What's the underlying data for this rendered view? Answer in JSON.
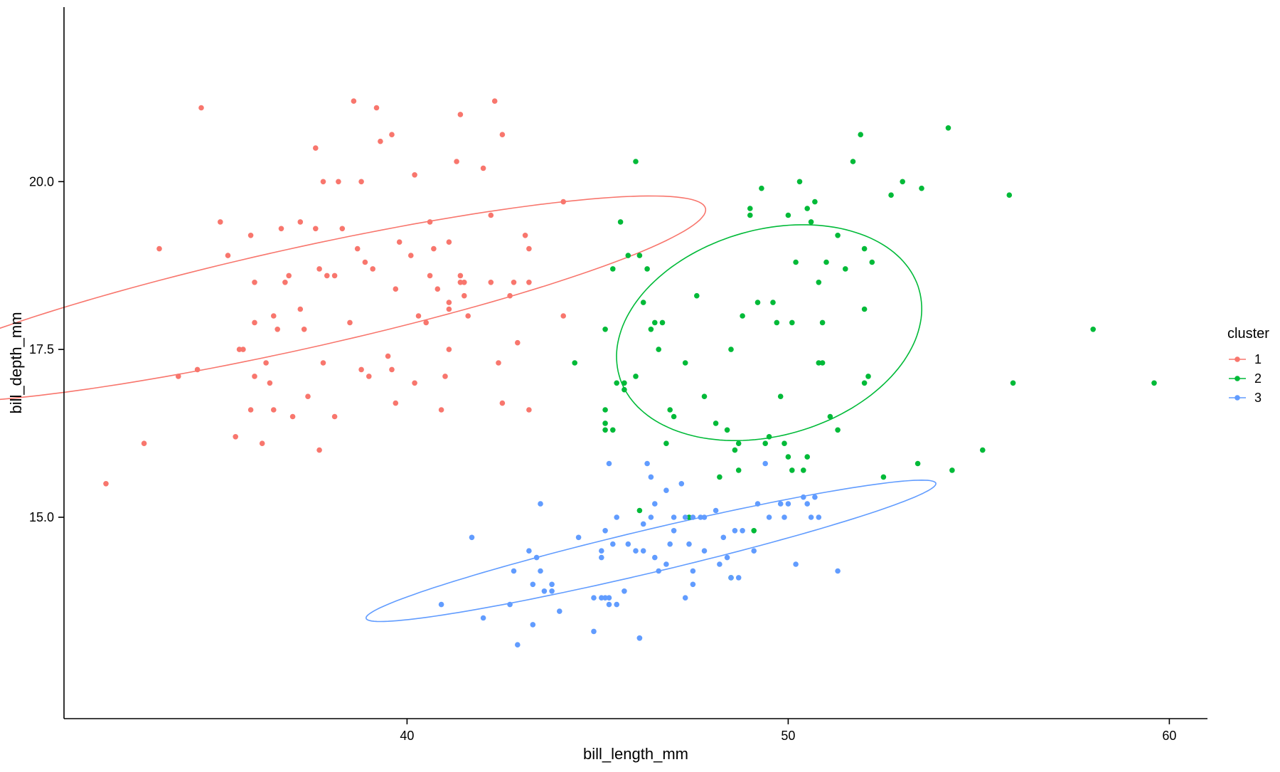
{
  "chart_data": {
    "type": "scatter",
    "title": "",
    "xlabel": "bill_length_mm",
    "ylabel": "bill_depth_mm",
    "xlim": [
      31.0,
      61.0
    ],
    "ylim": [
      12.0,
      22.6
    ],
    "xticks": [
      40,
      50,
      60
    ],
    "xtick_labels": [
      "40",
      "50",
      "60"
    ],
    "yticks": [
      15.0,
      17.5,
      20.0
    ],
    "ytick_labels": [
      "15.0",
      "17.5",
      "20.0"
    ],
    "grid": false,
    "legend": {
      "title": "cluster",
      "position": "right",
      "entries": [
        "1",
        "2",
        "3"
      ]
    },
    "colors": {
      "1": "#F8766D",
      "2": "#00BA38",
      "3": "#619CFF"
    },
    "ellipses": [
      {
        "cluster": "1",
        "center": [
          37.1,
          18.25
        ],
        "rx": 11.4,
        "ry": 2.05,
        "angle": 20
      },
      {
        "cluster": "2",
        "center": [
          49.5,
          17.75
        ],
        "rx": 4.8,
        "ry": 3.7,
        "angle": 60
      },
      {
        "cluster": "3",
        "center": [
          46.4,
          14.5
        ],
        "rx": 8.0,
        "ry": 0.87,
        "angle": 21
      }
    ],
    "series": [
      {
        "name": "1",
        "points": [
          [
            32.1,
            15.5
          ],
          [
            33.1,
            16.1
          ],
          [
            33.5,
            19.0
          ],
          [
            34.0,
            17.1
          ],
          [
            34.5,
            17.2
          ],
          [
            34.6,
            21.1
          ],
          [
            35.1,
            19.4
          ],
          [
            35.3,
            18.9
          ],
          [
            35.5,
            16.2
          ],
          [
            35.6,
            17.5
          ],
          [
            35.7,
            17.5
          ],
          [
            35.9,
            19.2
          ],
          [
            36.0,
            17.1
          ],
          [
            36.0,
            18.5
          ],
          [
            36.0,
            17.9
          ],
          [
            36.2,
            16.1
          ],
          [
            36.3,
            17.3
          ],
          [
            36.4,
            17.0
          ],
          [
            36.5,
            18.0
          ],
          [
            36.5,
            16.6
          ],
          [
            36.6,
            17.8
          ],
          [
            36.7,
            19.3
          ],
          [
            36.8,
            18.5
          ],
          [
            36.9,
            18.6
          ],
          [
            37.0,
            16.5
          ],
          [
            37.2,
            18.1
          ],
          [
            37.3,
            17.8
          ],
          [
            37.4,
            16.8
          ],
          [
            37.6,
            19.3
          ],
          [
            37.7,
            18.7
          ],
          [
            37.8,
            20.0
          ],
          [
            37.8,
            17.3
          ],
          [
            37.9,
            18.6
          ],
          [
            38.1,
            18.6
          ],
          [
            38.1,
            16.5
          ],
          [
            38.2,
            20.0
          ],
          [
            38.5,
            17.9
          ],
          [
            38.6,
            21.2
          ],
          [
            38.7,
            19.0
          ],
          [
            38.8,
            17.2
          ],
          [
            38.9,
            18.8
          ],
          [
            39.0,
            17.1
          ],
          [
            39.1,
            18.7
          ],
          [
            39.2,
            21.1
          ],
          [
            39.3,
            20.6
          ],
          [
            39.5,
            17.4
          ],
          [
            39.6,
            17.2
          ],
          [
            39.7,
            18.4
          ],
          [
            39.8,
            19.1
          ],
          [
            40.1,
            18.9
          ],
          [
            40.2,
            20.1
          ],
          [
            40.2,
            17.0
          ],
          [
            40.3,
            18.0
          ],
          [
            40.5,
            17.9
          ],
          [
            40.6,
            18.6
          ],
          [
            40.7,
            19.0
          ],
          [
            40.8,
            18.4
          ],
          [
            41.0,
            17.1
          ],
          [
            41.1,
            18.1
          ],
          [
            41.1,
            18.2
          ],
          [
            41.1,
            17.5
          ],
          [
            41.1,
            19.1
          ],
          [
            41.3,
            20.3
          ],
          [
            41.4,
            18.6
          ],
          [
            41.4,
            18.5
          ],
          [
            41.5,
            18.3
          ],
          [
            41.5,
            18.5
          ],
          [
            41.6,
            18.0
          ],
          [
            42.0,
            20.2
          ],
          [
            42.2,
            19.5
          ],
          [
            42.2,
            18.5
          ],
          [
            42.3,
            21.2
          ],
          [
            42.5,
            20.7
          ],
          [
            42.7,
            18.3
          ],
          [
            42.8,
            18.5
          ],
          [
            42.9,
            17.6
          ],
          [
            43.1,
            19.2
          ],
          [
            43.2,
            19.0
          ],
          [
            43.2,
            18.5
          ],
          [
            44.1,
            19.7
          ],
          [
            44.1,
            18.0
          ],
          [
            37.6,
            20.5
          ],
          [
            39.6,
            20.7
          ],
          [
            41.4,
            21.0
          ],
          [
            38.3,
            19.3
          ],
          [
            42.4,
            17.3
          ],
          [
            43.2,
            16.6
          ],
          [
            42.5,
            16.7
          ],
          [
            39.7,
            16.7
          ],
          [
            35.9,
            16.6
          ],
          [
            37.7,
            16.0
          ],
          [
            38.8,
            20.0
          ],
          [
            40.6,
            19.4
          ],
          [
            37.2,
            19.4
          ],
          [
            40.9,
            16.6
          ]
        ]
      },
      {
        "name": "2",
        "points": [
          [
            44.4,
            17.3
          ],
          [
            45.2,
            17.8
          ],
          [
            45.2,
            16.6
          ],
          [
            45.2,
            16.4
          ],
          [
            45.4,
            18.7
          ],
          [
            45.5,
            17.0
          ],
          [
            45.6,
            19.4
          ],
          [
            45.7,
            17.0
          ],
          [
            45.8,
            18.9
          ],
          [
            46.0,
            17.1
          ],
          [
            46.1,
            18.9
          ],
          [
            46.2,
            18.2
          ],
          [
            46.4,
            17.8
          ],
          [
            46.5,
            17.9
          ],
          [
            46.6,
            17.5
          ],
          [
            46.7,
            17.9
          ],
          [
            46.8,
            16.1
          ],
          [
            46.9,
            16.6
          ],
          [
            47.3,
            17.3
          ],
          [
            47.6,
            18.3
          ],
          [
            47.8,
            16.8
          ],
          [
            48.1,
            16.4
          ],
          [
            48.2,
            15.6
          ],
          [
            48.4,
            16.3
          ],
          [
            48.5,
            17.5
          ],
          [
            48.6,
            16.0
          ],
          [
            48.7,
            15.7
          ],
          [
            48.7,
            16.1
          ],
          [
            49.0,
            19.6
          ],
          [
            49.2,
            18.2
          ],
          [
            49.3,
            19.9
          ],
          [
            49.5,
            16.2
          ],
          [
            49.6,
            18.2
          ],
          [
            49.7,
            17.9
          ],
          [
            49.8,
            16.8
          ],
          [
            49.9,
            16.1
          ],
          [
            50.0,
            19.5
          ],
          [
            50.1,
            17.9
          ],
          [
            50.2,
            18.8
          ],
          [
            50.3,
            20.0
          ],
          [
            50.4,
            15.7
          ],
          [
            50.5,
            19.6
          ],
          [
            50.6,
            19.4
          ],
          [
            50.8,
            18.5
          ],
          [
            50.9,
            17.9
          ],
          [
            51.0,
            18.8
          ],
          [
            51.3,
            19.2
          ],
          [
            51.5,
            18.7
          ],
          [
            51.7,
            20.3
          ],
          [
            52.0,
            19.0
          ],
          [
            52.0,
            18.1
          ],
          [
            52.2,
            18.8
          ],
          [
            52.7,
            19.8
          ],
          [
            53.5,
            19.9
          ],
          [
            54.2,
            20.8
          ],
          [
            55.8,
            19.8
          ],
          [
            55.9,
            17.0
          ],
          [
            58.0,
            17.8
          ],
          [
            59.6,
            17.0
          ],
          [
            55.1,
            16.0
          ],
          [
            54.3,
            15.7
          ],
          [
            53.4,
            15.8
          ],
          [
            52.5,
            15.6
          ],
          [
            51.9,
            20.7
          ],
          [
            52.0,
            17.0
          ],
          [
            52.1,
            17.1
          ],
          [
            51.3,
            16.3
          ],
          [
            50.8,
            17.3
          ],
          [
            49.1,
            14.8
          ],
          [
            50.0,
            15.9
          ],
          [
            45.2,
            16.3
          ],
          [
            45.4,
            16.3
          ],
          [
            46.0,
            20.3
          ],
          [
            46.1,
            15.1
          ],
          [
            48.5,
            14.1
          ],
          [
            49.0,
            19.5
          ],
          [
            47.0,
            16.5
          ],
          [
            45.7,
            16.9
          ],
          [
            50.5,
            15.9
          ],
          [
            51.1,
            16.5
          ],
          [
            50.7,
            19.7
          ],
          [
            46.3,
            18.7
          ],
          [
            47.4,
            15.0
          ],
          [
            49.4,
            16.1
          ],
          [
            50.9,
            17.3
          ],
          [
            53.0,
            20.0
          ],
          [
            50.1,
            15.7
          ],
          [
            48.8,
            18.0
          ]
        ]
      },
      {
        "name": "3",
        "points": [
          [
            40.9,
            13.7
          ],
          [
            41.7,
            14.7
          ],
          [
            42.0,
            13.5
          ],
          [
            42.7,
            13.7
          ],
          [
            42.8,
            14.2
          ],
          [
            42.9,
            13.1
          ],
          [
            43.2,
            14.5
          ],
          [
            43.3,
            13.4
          ],
          [
            43.3,
            14.0
          ],
          [
            43.4,
            14.4
          ],
          [
            43.5,
            15.2
          ],
          [
            43.5,
            14.2
          ],
          [
            43.6,
            13.9
          ],
          [
            43.8,
            13.9
          ],
          [
            44.0,
            13.6
          ],
          [
            44.5,
            14.7
          ],
          [
            44.9,
            13.8
          ],
          [
            45.1,
            14.5
          ],
          [
            45.2,
            13.8
          ],
          [
            45.3,
            13.8
          ],
          [
            45.3,
            13.7
          ],
          [
            45.4,
            14.6
          ],
          [
            45.5,
            13.7
          ],
          [
            45.5,
            15.0
          ],
          [
            45.7,
            13.9
          ],
          [
            45.8,
            14.6
          ],
          [
            46.1,
            13.2
          ],
          [
            46.2,
            14.5
          ],
          [
            46.3,
            15.8
          ],
          [
            46.4,
            15.0
          ],
          [
            46.5,
            14.4
          ],
          [
            46.6,
            14.2
          ],
          [
            46.8,
            14.3
          ],
          [
            46.9,
            14.6
          ],
          [
            47.0,
            14.8
          ],
          [
            47.2,
            15.5
          ],
          [
            47.3,
            13.8
          ],
          [
            47.4,
            14.6
          ],
          [
            47.5,
            14.0
          ],
          [
            47.5,
            15.0
          ],
          [
            47.7,
            15.0
          ],
          [
            47.8,
            15.0
          ],
          [
            48.1,
            15.1
          ],
          [
            48.2,
            14.3
          ],
          [
            48.4,
            14.4
          ],
          [
            48.5,
            14.1
          ],
          [
            48.7,
            14.1
          ],
          [
            48.8,
            14.8
          ],
          [
            49.1,
            14.5
          ],
          [
            49.2,
            15.2
          ],
          [
            49.4,
            15.8
          ],
          [
            49.5,
            15.0
          ],
          [
            49.8,
            15.2
          ],
          [
            50.0,
            15.2
          ],
          [
            50.2,
            14.3
          ],
          [
            50.4,
            15.3
          ],
          [
            50.5,
            15.2
          ],
          [
            50.7,
            15.3
          ],
          [
            50.8,
            15.0
          ],
          [
            51.3,
            14.2
          ],
          [
            46.5,
            15.2
          ],
          [
            45.3,
            15.8
          ],
          [
            45.1,
            14.4
          ],
          [
            46.2,
            14.9
          ],
          [
            47.5,
            14.2
          ],
          [
            43.8,
            14.0
          ],
          [
            46.1,
            13.2
          ],
          [
            45.2,
            14.8
          ],
          [
            47.8,
            14.5
          ],
          [
            48.6,
            14.8
          ],
          [
            44.9,
            13.3
          ],
          [
            46.0,
            14.5
          ],
          [
            46.4,
            15.6
          ],
          [
            45.1,
            13.8
          ],
          [
            47.0,
            15.0
          ],
          [
            46.8,
            15.4
          ],
          [
            47.3,
            15.0
          ],
          [
            48.3,
            14.7
          ],
          [
            49.9,
            15.0
          ],
          [
            50.6,
            15.0
          ]
        ]
      }
    ]
  }
}
